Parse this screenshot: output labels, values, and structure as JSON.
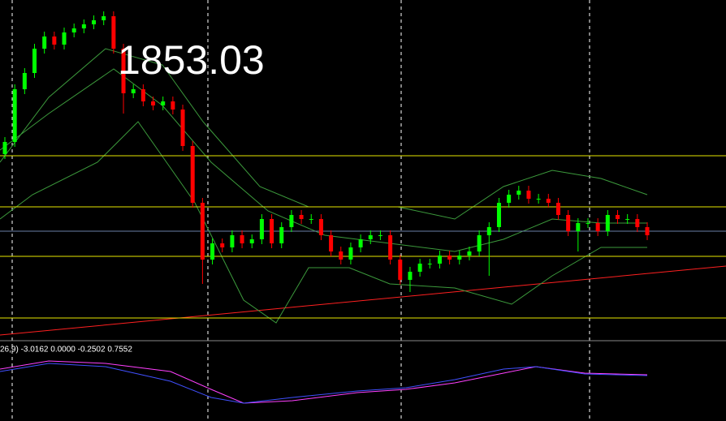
{
  "chart_data": {
    "type": "candlestick",
    "annotation": "1853.03",
    "indicator_label": "26,9) -3.0162 0.0000 -0.2502 0.7552",
    "ylim": [
      0,
      420
    ],
    "up_color": "#00ff00",
    "down_color": "#ff0000",
    "open": [
      230,
      245,
      310,
      330,
      360,
      375,
      365,
      380,
      385,
      390,
      395,
      400,
      360,
      305,
      310,
      295,
      290,
      295,
      285,
      240,
      170,
      100,
      120,
      115,
      130,
      120,
      125,
      150,
      120,
      140,
      155,
      150,
      150,
      130,
      110,
      100,
      115,
      125,
      130,
      130,
      100,
      75,
      85,
      95,
      95,
      105,
      100,
      105,
      110,
      130,
      140,
      170,
      180,
      185,
      175,
      175,
      170,
      155,
      135,
      145,
      145,
      135,
      155,
      150,
      150,
      140
    ],
    "high": [
      251,
      316,
      336,
      366,
      381,
      381,
      386,
      391,
      396,
      401,
      406,
      406,
      366,
      316,
      316,
      301,
      301,
      301,
      291,
      246,
      176,
      126,
      126,
      136,
      136,
      131,
      156,
      156,
      146,
      161,
      161,
      156,
      156,
      136,
      116,
      121,
      131,
      136,
      136,
      136,
      106,
      91,
      101,
      101,
      111,
      111,
      111,
      116,
      136,
      146,
      176,
      186,
      191,
      191,
      181,
      181,
      176,
      161,
      151,
      151,
      151,
      161,
      161,
      156,
      156,
      146
    ],
    "low": [
      224,
      239,
      304,
      324,
      354,
      359,
      359,
      374,
      379,
      384,
      389,
      354,
      280,
      299,
      289,
      284,
      284,
      279,
      234,
      164,
      70,
      94,
      109,
      109,
      114,
      114,
      119,
      114,
      114,
      134,
      144,
      144,
      124,
      104,
      94,
      94,
      109,
      119,
      124,
      94,
      69,
      60,
      79,
      89,
      89,
      94,
      94,
      99,
      104,
      80,
      134,
      164,
      174,
      169,
      169,
      164,
      149,
      129,
      110,
      139,
      129,
      129,
      144,
      144,
      134,
      124
    ],
    "close": [
      245,
      310,
      330,
      360,
      375,
      365,
      380,
      385,
      390,
      395,
      400,
      360,
      305,
      310,
      295,
      290,
      295,
      285,
      240,
      170,
      100,
      120,
      115,
      130,
      120,
      125,
      150,
      120,
      140,
      155,
      150,
      150,
      130,
      110,
      100,
      115,
      125,
      130,
      130,
      100,
      75,
      85,
      95,
      95,
      105,
      100,
      105,
      110,
      130,
      140,
      170,
      180,
      185,
      175,
      175,
      170,
      155,
      135,
      145,
      145,
      135,
      155,
      150,
      150,
      140,
      130
    ],
    "levels": [
      228,
      165,
      104,
      28
    ],
    "level_color": "#e6e600",
    "price_line": 135,
    "price_line_color": "#6a7fa8"
  }
}
